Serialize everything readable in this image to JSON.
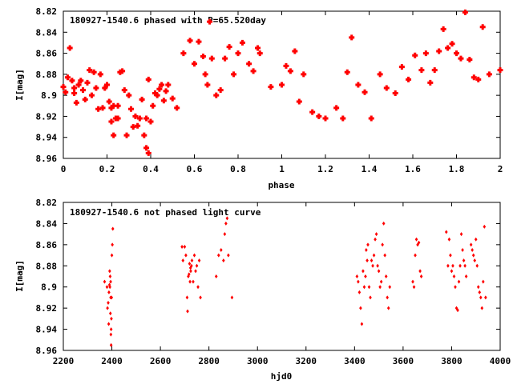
{
  "chart_data": [
    {
      "type": "scatter",
      "title": "180927-1540.6 phased with P=65.520day",
      "xlabel": "phase",
      "ylabel": "I[mag]",
      "xlim": [
        0,
        2
      ],
      "ylim": [
        8.96,
        8.82
      ],
      "y_inverted": true,
      "xticks": [
        "0",
        "0.2",
        "0.4",
        "0.6",
        "0.8",
        "1",
        "1.2",
        "1.4",
        "1.6",
        "1.8",
        "2"
      ],
      "yticks": [
        "8.82",
        "8.84",
        "8.86",
        "8.88",
        "8.9",
        "8.92",
        "8.94",
        "8.96"
      ],
      "grid": false,
      "marker_color": "#ff0000",
      "marker": "filled-cross",
      "x": [
        0.0,
        0.01,
        0.02,
        0.03,
        0.04,
        0.05,
        0.05,
        0.06,
        0.07,
        0.08,
        0.09,
        0.1,
        0.11,
        0.12,
        0.13,
        0.14,
        0.15,
        0.16,
        0.17,
        0.18,
        0.19,
        0.2,
        0.21,
        0.22,
        0.22,
        0.23,
        0.23,
        0.24,
        0.25,
        0.25,
        0.26,
        0.27,
        0.28,
        0.29,
        0.3,
        0.31,
        0.32,
        0.33,
        0.34,
        0.35,
        0.36,
        0.37,
        0.38,
        0.38,
        0.39,
        0.39,
        0.4,
        0.41,
        0.42,
        0.43,
        0.44,
        0.45,
        0.46,
        0.47,
        0.48,
        0.5,
        0.52,
        0.55,
        0.58,
        0.6,
        0.62,
        0.64,
        0.65,
        0.66,
        0.67,
        0.68,
        0.7,
        0.72,
        0.74,
        0.76,
        0.78,
        0.8,
        0.82,
        0.85,
        0.87,
        0.89,
        0.9,
        0.95,
        1.0,
        1.02,
        1.04,
        1.06,
        1.08,
        1.1,
        1.14,
        1.17,
        1.2,
        1.25,
        1.28,
        1.3,
        1.32,
        1.35,
        1.38,
        1.41,
        1.45,
        1.48,
        1.52,
        1.55,
        1.58,
        1.61,
        1.64,
        1.66,
        1.68,
        1.7,
        1.72,
        1.74,
        1.76,
        1.78,
        1.8,
        1.82,
        1.84,
        1.86,
        1.88,
        1.9,
        1.92,
        1.95,
        2.0
      ],
      "y": [
        8.892,
        8.897,
        8.883,
        8.855,
        8.886,
        8.898,
        8.893,
        8.907,
        8.89,
        8.886,
        8.895,
        8.904,
        8.888,
        8.876,
        8.9,
        8.878,
        8.893,
        8.913,
        8.88,
        8.912,
        8.893,
        8.89,
        8.906,
        8.912,
        8.925,
        8.91,
        8.938,
        8.922,
        8.922,
        8.91,
        8.878,
        8.877,
        8.895,
        8.938,
        8.9,
        8.913,
        8.93,
        8.92,
        8.929,
        8.922,
        8.904,
        8.938,
        8.95,
        8.922,
        8.955,
        8.885,
        8.925,
        8.91,
        8.898,
        8.9,
        8.894,
        8.89,
        8.905,
        8.896,
        8.89,
        8.903,
        8.912,
        8.86,
        8.848,
        8.87,
        8.849,
        8.863,
        8.88,
        8.89,
        8.83,
        8.865,
        8.9,
        8.895,
        8.865,
        8.854,
        8.88,
        8.86,
        8.85,
        8.87,
        8.877,
        8.855,
        8.86,
        8.892,
        8.89,
        8.872,
        8.877,
        8.858,
        8.906,
        8.88,
        8.916,
        8.92,
        8.922,
        8.912,
        8.922,
        8.878,
        8.845,
        8.89,
        8.897,
        8.922,
        8.88,
        8.893,
        8.898,
        8.873,
        8.885,
        8.862,
        8.876,
        8.86,
        8.888,
        8.876,
        8.858,
        8.837,
        8.855,
        8.851,
        8.86,
        8.865,
        8.821,
        8.866,
        8.883,
        8.885,
        8.835,
        8.88,
        8.876
      ]
    },
    {
      "type": "scatter",
      "title": "180927-1540.6 not phased light curve",
      "xlabel": "hjd0",
      "ylabel": "I[mag]",
      "xlim": [
        2200,
        4000
      ],
      "ylim": [
        8.96,
        8.82
      ],
      "y_inverted": true,
      "xticks": [
        "2200",
        "2400",
        "2600",
        "2800",
        "3000",
        "3200",
        "3400",
        "3600",
        "3800",
        "4000"
      ],
      "yticks": [
        "8.82",
        "8.84",
        "8.86",
        "8.88",
        "8.9",
        "8.92",
        "8.94",
        "8.96"
      ],
      "grid": false,
      "marker_color": "#ff0000",
      "marker": "small-diamond",
      "x": [
        2385,
        2388,
        2390,
        2392,
        2393,
        2394,
        2395,
        2395,
        2396,
        2397,
        2397,
        2398,
        2399,
        2400,
        2402,
        2404,
        2370,
        2380,
        2382,
        2387,
        2391,
        2689,
        2693,
        2700,
        2705,
        2710,
        2712,
        2715,
        2718,
        2720,
        2722,
        2724,
        2725,
        2728,
        2730,
        2735,
        2740,
        2745,
        2750,
        2755,
        2760,
        2765,
        2830,
        2840,
        2850,
        2860,
        2865,
        2870,
        2875,
        2880,
        2895,
        3410,
        3415,
        3420,
        3425,
        3430,
        3435,
        3440,
        3445,
        3448,
        3452,
        3455,
        3460,
        3465,
        3470,
        3475,
        3480,
        3485,
        3490,
        3495,
        3500,
        3505,
        3510,
        3515,
        3520,
        3525,
        3530,
        3535,
        3540,
        3545,
        3640,
        3645,
        3650,
        3655,
        3660,
        3665,
        3670,
        3675,
        3778,
        3785,
        3790,
        3795,
        3800,
        3805,
        3810,
        3815,
        3820,
        3825,
        3830,
        3835,
        3840,
        3845,
        3850,
        3855,
        3860,
        3880,
        3885,
        3890,
        3895,
        3900,
        3905,
        3910,
        3915,
        3920,
        3925,
        3930,
        3935,
        3940
      ],
      "y": [
        8.915,
        8.905,
        8.898,
        8.9,
        8.89,
        8.925,
        8.91,
        8.895,
        8.945,
        8.94,
        8.955,
        8.93,
        8.91,
        8.87,
        8.86,
        8.845,
        8.895,
        8.9,
        8.92,
        8.935,
        8.885,
        8.862,
        8.875,
        8.862,
        8.87,
        8.91,
        8.923,
        8.89,
        8.888,
        8.878,
        8.895,
        8.882,
        8.885,
        8.88,
        8.875,
        8.895,
        8.87,
        8.885,
        8.88,
        8.9,
        8.875,
        8.91,
        8.89,
        8.87,
        8.865,
        8.875,
        8.85,
        8.84,
        8.835,
        8.87,
        8.91,
        8.89,
        8.895,
        8.905,
        8.92,
        8.935,
        8.885,
        8.9,
        8.89,
        8.865,
        8.875,
        8.86,
        8.9,
        8.91,
        8.875,
        8.88,
        8.87,
        8.855,
        8.85,
        8.88,
        8.885,
        8.9,
        8.895,
        8.86,
        8.84,
        8.87,
        8.89,
        8.91,
        8.92,
        8.9,
        8.895,
        8.9,
        8.87,
        8.855,
        8.86,
        8.858,
        8.885,
        8.89,
        8.848,
        8.88,
        8.855,
        8.87,
        8.885,
        8.88,
        8.89,
        8.9,
        8.92,
        8.922,
        8.895,
        8.88,
        8.85,
        8.865,
        8.875,
        8.88,
        8.89,
        8.86,
        8.865,
        8.87,
        8.875,
        8.855,
        8.88,
        8.9,
        8.905,
        8.91,
        8.92,
        8.895,
        8.843,
        8.91
      ]
    }
  ]
}
